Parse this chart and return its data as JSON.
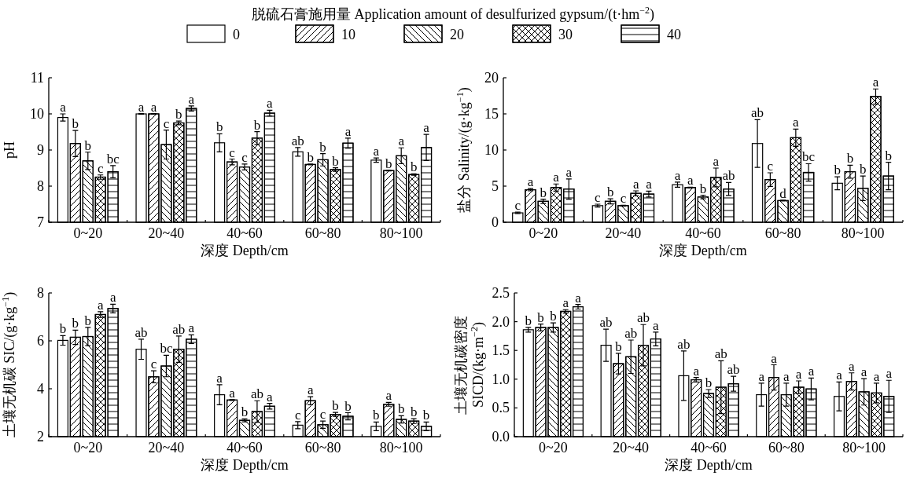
{
  "chart_data": [
    {
      "type": "bar",
      "ylabel": "pH",
      "xlabel": "深度 Depth/cm",
      "legend": "top",
      "legend_title": "脱硫石膏施用量 Application amount of desulfurized gypsum/(t·hm$^{−2}$)",
      "categories": [
        "0~20",
        "20~40",
        "40~60",
        "60~80",
        "80~100"
      ],
      "ylim": [
        7,
        11
      ],
      "yticks": [
        7,
        8,
        9,
        10,
        11
      ],
      "series": [
        {
          "name": "0",
          "color": "#ffffff",
          "values": [
            9.9,
            10.0,
            9.2,
            8.95,
            8.72
          ],
          "errors": [
            0.1,
            0.01,
            0.25,
            0.12,
            0.06
          ],
          "value_labels": [
            "a",
            "a",
            "b",
            "ab",
            "a"
          ]
        },
        {
          "name": "10",
          "color": "#ffffff",
          "values": [
            9.18,
            10.0,
            8.67,
            8.6,
            8.43
          ],
          "errors": [
            0.36,
            0.01,
            0.08,
            0.01,
            0.01
          ],
          "value_labels": [
            "b",
            "a",
            "c",
            "b",
            "b"
          ]
        },
        {
          "name": "20",
          "color": "#ffffff",
          "values": [
            8.7,
            9.15,
            8.53,
            8.73,
            8.84
          ],
          "errors": [
            0.24,
            0.4,
            0.08,
            0.17,
            0.22
          ],
          "value_labels": [
            "b",
            "c",
            "c",
            "b",
            "a"
          ]
        },
        {
          "name": "30",
          "color": "#ffffff",
          "values": [
            8.25,
            9.75,
            9.33,
            8.46,
            8.32
          ],
          "errors": [
            0.06,
            0.05,
            0.18,
            0.05,
            0.02
          ],
          "value_labels": [
            "c",
            "b",
            "b",
            "b",
            "b"
          ]
        },
        {
          "name": "40",
          "color": "#ffffff",
          "values": [
            8.4,
            10.15,
            10.02,
            9.19,
            9.07
          ],
          "errors": [
            0.17,
            0.07,
            0.08,
            0.14,
            0.36
          ],
          "value_labels": [
            "bc",
            "a",
            "a",
            "a",
            "a"
          ]
        }
      ]
    },
    {
      "type": "bar",
      "ylabel": "盐分 Salinity/(g·kg$^{−1}$)",
      "xlabel": "深度 Depth/cm",
      "categories": [
        "0~20",
        "20~40",
        "40~60",
        "60~80",
        "80~100"
      ],
      "ylim": [
        0,
        20
      ],
      "yticks": [
        0,
        5,
        10,
        15,
        20
      ],
      "series": [
        {
          "color": "#ffffff",
          "values": [
            1.3,
            2.3,
            5.2,
            10.9,
            5.4
          ],
          "errors": [
            0.1,
            0.2,
            0.35,
            3.3,
            0.9
          ],
          "value_labels": [
            "c",
            "c",
            "a",
            "ab",
            "b"
          ]
        },
        {
          "color": "#ffffff",
          "values": [
            4.5,
            2.9,
            4.8,
            5.9,
            7.0
          ],
          "errors": [
            0.15,
            0.35,
            0.05,
            0.95,
            0.9
          ],
          "value_labels": [
            "a",
            "b",
            "a",
            "c",
            "b"
          ]
        },
        {
          "color": "#ffffff",
          "values": [
            2.9,
            2.3,
            3.5,
            3.0,
            4.7
          ],
          "errors": [
            0.3,
            0.05,
            0.25,
            0.05,
            1.7
          ],
          "value_labels": [
            "b",
            "c",
            "b",
            "d",
            "b"
          ]
        },
        {
          "color": "#ffffff",
          "values": [
            4.8,
            4.0,
            6.2,
            11.7,
            17.4
          ],
          "errors": [
            0.5,
            0.35,
            1.3,
            1.2,
            1.05
          ],
          "value_labels": [
            "a",
            "a",
            "a",
            "a",
            "a"
          ]
        },
        {
          "color": "#ffffff",
          "values": [
            4.6,
            3.9,
            4.6,
            6.9,
            6.4
          ],
          "errors": [
            1.4,
            0.4,
            0.9,
            1.2,
            1.9
          ],
          "value_labels": [
            "a",
            "a",
            "ab",
            "bc",
            "b"
          ]
        }
      ]
    },
    {
      "type": "bar",
      "ylabel": "土壤无机碳 SIC/(g·kg$^{−1}$)",
      "xlabel": "深度 Depth/cm",
      "categories": [
        "0~20",
        "20~40",
        "40~60",
        "60~80",
        "80~100"
      ],
      "ylim": [
        2,
        8
      ],
      "yticks": [
        2,
        4,
        6,
        8
      ],
      "series": [
        {
          "color": "#ffffff",
          "values": [
            6.02,
            5.65,
            3.75,
            2.48,
            2.43
          ],
          "errors": [
            0.2,
            0.42,
            0.42,
            0.15,
            0.18
          ],
          "value_labels": [
            "b",
            "ab",
            "a",
            "c",
            "b"
          ]
        },
        {
          "color": "#ffffff",
          "values": [
            6.15,
            4.5,
            3.53,
            3.5,
            3.35
          ],
          "errors": [
            0.3,
            0.25,
            0.02,
            0.17,
            0.08
          ],
          "value_labels": [
            "b",
            "c",
            "a",
            "a",
            "a"
          ]
        },
        {
          "color": "#ffffff",
          "values": [
            6.18,
            4.95,
            2.68,
            2.5,
            2.72
          ],
          "errors": [
            0.38,
            0.45,
            0.06,
            0.15,
            0.15
          ],
          "value_labels": [
            "b",
            "bc",
            "b",
            "c",
            "b"
          ]
        },
        {
          "color": "#ffffff",
          "values": [
            7.1,
            5.65,
            3.05,
            2.93,
            2.65
          ],
          "errors": [
            0.12,
            0.55,
            0.45,
            0.08,
            0.1
          ],
          "value_labels": [
            "a",
            "ab",
            "ab",
            "b",
            "b"
          ]
        },
        {
          "color": "#ffffff",
          "values": [
            7.35,
            6.07,
            3.27,
            2.85,
            2.43
          ],
          "errors": [
            0.18,
            0.18,
            0.12,
            0.15,
            0.18
          ],
          "value_labels": [
            "a",
            "a",
            "a",
            "b",
            "b"
          ]
        }
      ]
    },
    {
      "type": "bar",
      "ylabel": "土壤无机碳密度 SICD/(kg·m$^{−2}$)",
      "xlabel": "深度 Depth/cm",
      "categories": [
        "0~20",
        "20~40",
        "40~60",
        "60~80",
        "80~100"
      ],
      "ylim": [
        0,
        2.5
      ],
      "yticks": [
        {
          "value": 0,
          "label": "0.0"
        },
        0.5,
        {
          "value": 1,
          "label": "1.0"
        },
        1.5,
        {
          "value": 2,
          "label": "2.0"
        },
        2.5
      ],
      "series": [
        {
          "color": "#ffffff",
          "values": [
            1.86,
            1.59,
            1.06,
            0.73,
            0.7
          ],
          "errors": [
            0.04,
            0.28,
            0.43,
            0.2,
            0.25
          ],
          "value_labels": [
            "b",
            "ab",
            "ab",
            "a",
            "a"
          ]
        },
        {
          "color": "#ffffff",
          "values": [
            1.9,
            1.27,
            0.99,
            1.03,
            0.96
          ],
          "errors": [
            0.06,
            0.18,
            0.04,
            0.22,
            0.15
          ],
          "value_labels": [
            "b",
            "b",
            "a",
            "a",
            "a"
          ]
        },
        {
          "color": "#ffffff",
          "values": [
            1.9,
            1.39,
            0.75,
            0.73,
            0.78
          ],
          "errors": [
            0.08,
            0.29,
            0.07,
            0.2,
            0.23
          ],
          "value_labels": [
            "b",
            "ab",
            "b",
            "a",
            "a"
          ]
        },
        {
          "color": "#ffffff",
          "values": [
            2.18,
            1.59,
            0.86,
            0.86,
            0.76
          ],
          "errors": [
            0.03,
            0.36,
            0.46,
            0.11,
            0.17
          ],
          "value_labels": [
            "a",
            "ab",
            "ab",
            "a",
            "a"
          ]
        },
        {
          "color": "#ffffff",
          "values": [
            2.26,
            1.7,
            0.92,
            0.83,
            0.7
          ],
          "errors": [
            0.04,
            0.12,
            0.13,
            0.19,
            0.28
          ],
          "value_labels": [
            "a",
            "a",
            "ab",
            "a",
            "a"
          ]
        }
      ]
    }
  ]
}
